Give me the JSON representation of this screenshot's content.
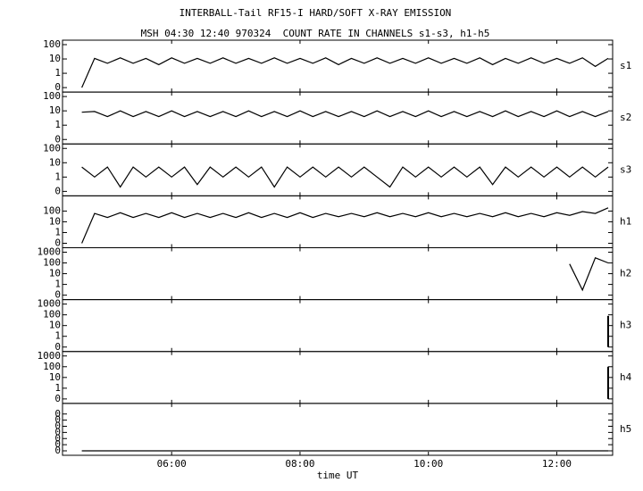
{
  "chart_data": {
    "type": "line",
    "title": "INTERBALL-Tail RF15-I HARD/SOFT X-RAY EMISSION",
    "subtitle": "MSH 04:30 12:40 970324  COUNT RATE IN CHANNELS s1-s3, h1-h5",
    "xlabel": "time UT",
    "xlim": [
      4.3,
      12.87
    ],
    "xticks": [
      {
        "value": 6,
        "label": "06:00"
      },
      {
        "value": 8,
        "label": "08:00"
      },
      {
        "value": 10,
        "label": "10:00"
      },
      {
        "value": 12,
        "label": "12:00"
      }
    ],
    "x": [
      4.6,
      4.8,
      5,
      5.2,
      5.4,
      5.6,
      5.8,
      6,
      6.2,
      6.4,
      6.6,
      6.8,
      7,
      7.2,
      7.4,
      7.6,
      7.8,
      8,
      8.2,
      8.4,
      8.6,
      8.8,
      9,
      9.2,
      9.4,
      9.6,
      9.8,
      10,
      10.2,
      10.4,
      10.6,
      10.8,
      11,
      11.2,
      11.4,
      11.6,
      11.8,
      12,
      12.2,
      12.4,
      12.6,
      12.8
    ],
    "color": "#000000",
    "log_scale": true,
    "series": [
      {
        "name": "s1",
        "ylim": [
          0.1,
          100
        ],
        "yticks": [
          100,
          10,
          1,
          {
            "value": 0.1,
            "label": "0"
          }
        ],
        "values": [
          0.1,
          11,
          5,
          12,
          5,
          11,
          4,
          12,
          5,
          11,
          5,
          12,
          5,
          11,
          5,
          12,
          5,
          11,
          5,
          12,
          4,
          11,
          5,
          12,
          5,
          11,
          5,
          12,
          5,
          11,
          5,
          12,
          4,
          11,
          5,
          12,
          5,
          11,
          5,
          12,
          3,
          11
        ]
      },
      {
        "name": "s2",
        "ylim": [
          0.1,
          100
        ],
        "yticks": [
          100,
          10,
          1,
          {
            "value": 0.1,
            "label": "0"
          }
        ],
        "values": [
          8,
          9,
          4,
          10,
          4,
          9,
          4,
          10,
          4,
          9,
          4,
          9,
          4,
          10,
          4,
          9,
          4,
          10,
          4,
          9,
          4,
          9,
          4,
          10,
          4,
          9,
          4,
          10,
          4,
          9,
          4,
          9,
          4,
          10,
          4,
          9,
          4,
          10,
          4,
          9,
          4,
          9
        ]
      },
      {
        "name": "s3",
        "ylim": [
          0.1,
          100
        ],
        "yticks": [
          100,
          10,
          1,
          {
            "value": 0.1,
            "label": "0"
          }
        ],
        "values": [
          5,
          1,
          5,
          0.2,
          5,
          1,
          5,
          1,
          5,
          0.3,
          5,
          1,
          5,
          1,
          5,
          0.2,
          5,
          1,
          5,
          1,
          5,
          1,
          5,
          1,
          0.2,
          5,
          1,
          5,
          1,
          5,
          1,
          5,
          0.3,
          5,
          1,
          5,
          1,
          5,
          1,
          5,
          1,
          5
        ]
      },
      {
        "name": "h1",
        "ylim": [
          0.1,
          1000
        ],
        "yticks": [
          100,
          10,
          1,
          {
            "value": 0.1,
            "label": "0"
          }
        ],
        "values": [
          0.1,
          60,
          25,
          70,
          25,
          60,
          25,
          70,
          25,
          60,
          25,
          60,
          25,
          70,
          25,
          60,
          25,
          70,
          25,
          60,
          30,
          60,
          30,
          70,
          30,
          60,
          30,
          70,
          30,
          60,
          30,
          60,
          30,
          70,
          30,
          60,
          30,
          70,
          40,
          90,
          60,
          200
        ]
      },
      {
        "name": "h2",
        "ylim": [
          0.1,
          1000
        ],
        "yticks": [
          1000,
          100,
          10,
          1,
          {
            "value": 0.1,
            "label": "0"
          }
        ],
        "values": [
          null,
          null,
          null,
          null,
          null,
          null,
          null,
          null,
          null,
          null,
          null,
          null,
          null,
          null,
          null,
          null,
          null,
          null,
          null,
          null,
          null,
          null,
          null,
          null,
          null,
          null,
          null,
          null,
          null,
          null,
          null,
          null,
          null,
          null,
          null,
          null,
          null,
          null,
          80,
          0.3,
          300,
          100
        ]
      },
      {
        "name": "h3",
        "ylim": [
          0.1,
          1000
        ],
        "yticks": [
          1000,
          100,
          10,
          1,
          {
            "value": 0.1,
            "label": "0"
          }
        ],
        "values": [
          null,
          null,
          null,
          null,
          null,
          null,
          null,
          null,
          null,
          null,
          null,
          null,
          null,
          null,
          null,
          null,
          null,
          null,
          null,
          null,
          null,
          null,
          null,
          null,
          null,
          null,
          null,
          null,
          null,
          null,
          null,
          null,
          null,
          null,
          null,
          null,
          null,
          null,
          null,
          null,
          null,
          80
        ]
      },
      {
        "name": "h4",
        "ylim": [
          0.1,
          1000
        ],
        "yticks": [
          1000,
          100,
          10,
          1,
          {
            "value": 0.1,
            "label": "0"
          }
        ],
        "values": [
          null,
          null,
          null,
          null,
          null,
          null,
          null,
          null,
          null,
          null,
          null,
          null,
          null,
          null,
          null,
          null,
          null,
          null,
          null,
          null,
          null,
          null,
          null,
          null,
          null,
          null,
          null,
          null,
          null,
          null,
          null,
          null,
          null,
          null,
          null,
          null,
          null,
          null,
          null,
          null,
          null,
          100
        ]
      },
      {
        "name": "h5",
        "log_scale": false,
        "ylim": [
          0,
          0.007
        ],
        "yticks": [
          {
            "value": 0.006,
            "label": "0"
          },
          {
            "value": 0.005,
            "label": "0"
          },
          {
            "value": 0.004,
            "label": "0"
          },
          {
            "value": 0.003,
            "label": "0"
          },
          {
            "value": 0.002,
            "label": "0"
          },
          {
            "value": 0.001,
            "label": "0"
          },
          0
        ],
        "values": [
          0,
          0,
          0,
          0,
          0,
          0,
          0,
          0,
          0,
          0,
          0,
          0,
          0,
          0,
          0,
          0,
          0,
          0,
          0,
          0,
          0,
          0,
          0,
          0,
          0,
          0,
          0,
          0,
          0,
          0,
          0,
          0,
          0,
          0,
          0,
          0,
          0,
          0,
          0,
          0,
          0,
          0
        ]
      }
    ]
  }
}
